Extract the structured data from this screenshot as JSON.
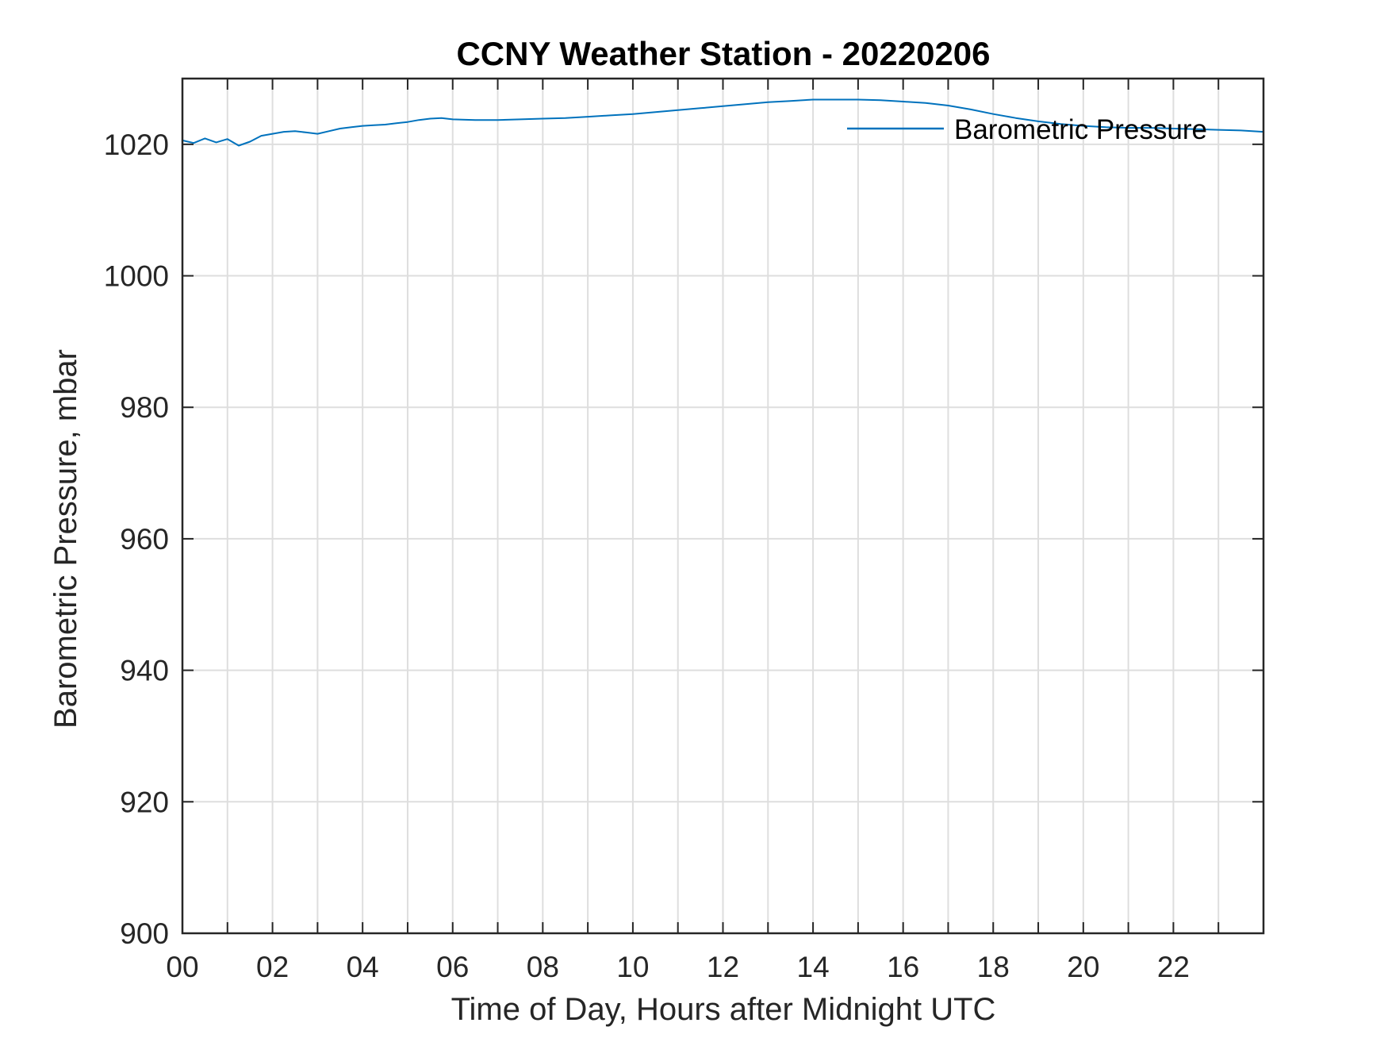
{
  "chart_data": {
    "type": "line",
    "title": "CCNY Weather Station - 20220206",
    "xlabel": "Time of Day, Hours after Midnight UTC",
    "ylabel": "Barometric Pressure, mbar",
    "xlim": [
      0,
      24
    ],
    "ylim": [
      900,
      1030
    ],
    "xticks": [
      0,
      2,
      4,
      6,
      8,
      10,
      12,
      14,
      16,
      18,
      20,
      22
    ],
    "xtick_labels": [
      "00",
      "02",
      "04",
      "06",
      "08",
      "10",
      "12",
      "14",
      "16",
      "18",
      "20",
      "22"
    ],
    "minor_xticks": [
      1,
      3,
      5,
      7,
      9,
      11,
      13,
      15,
      17,
      19,
      21,
      23
    ],
    "yticks": [
      900,
      920,
      940,
      960,
      980,
      1000,
      1020
    ],
    "ytick_labels": [
      "900",
      "920",
      "940",
      "960",
      "980",
      "1000",
      "1020"
    ],
    "grid": true,
    "legend_position": "top-right",
    "series": [
      {
        "name": "Barometric Pressure",
        "color": "#0072BD",
        "x": [
          0,
          0.25,
          0.5,
          0.75,
          1.0,
          1.25,
          1.5,
          1.75,
          2.0,
          2.25,
          2.5,
          2.75,
          3.0,
          3.25,
          3.5,
          3.75,
          4.0,
          4.25,
          4.5,
          4.75,
          5.0,
          5.25,
          5.5,
          5.75,
          6.0,
          6.5,
          7.0,
          7.5,
          8.0,
          8.5,
          9.0,
          9.5,
          10.0,
          10.5,
          11.0,
          11.5,
          12.0,
          12.5,
          13.0,
          13.5,
          14.0,
          14.5,
          15.0,
          15.5,
          16.0,
          16.5,
          17.0,
          17.5,
          18.0,
          18.5,
          19.0,
          19.5,
          20.0,
          20.5,
          21.0,
          21.5,
          22.0,
          22.5,
          23.0,
          23.5,
          24.0
        ],
        "y": [
          1020.6,
          1020.2,
          1020.9,
          1020.3,
          1020.8,
          1019.8,
          1020.4,
          1021.3,
          1021.6,
          1021.9,
          1022.0,
          1021.8,
          1021.6,
          1022.0,
          1022.4,
          1022.6,
          1022.8,
          1022.9,
          1023.0,
          1023.2,
          1023.4,
          1023.7,
          1023.9,
          1024.0,
          1023.8,
          1023.7,
          1023.7,
          1023.8,
          1023.9,
          1024.0,
          1024.2,
          1024.4,
          1024.6,
          1024.9,
          1025.2,
          1025.5,
          1025.8,
          1026.1,
          1026.4,
          1026.6,
          1026.8,
          1026.8,
          1026.8,
          1026.7,
          1026.5,
          1026.3,
          1025.9,
          1025.3,
          1024.6,
          1024.0,
          1023.5,
          1023.1,
          1022.8,
          1022.6,
          1022.5,
          1022.5,
          1022.4,
          1022.3,
          1022.2,
          1022.1,
          1021.9
        ]
      }
    ]
  }
}
